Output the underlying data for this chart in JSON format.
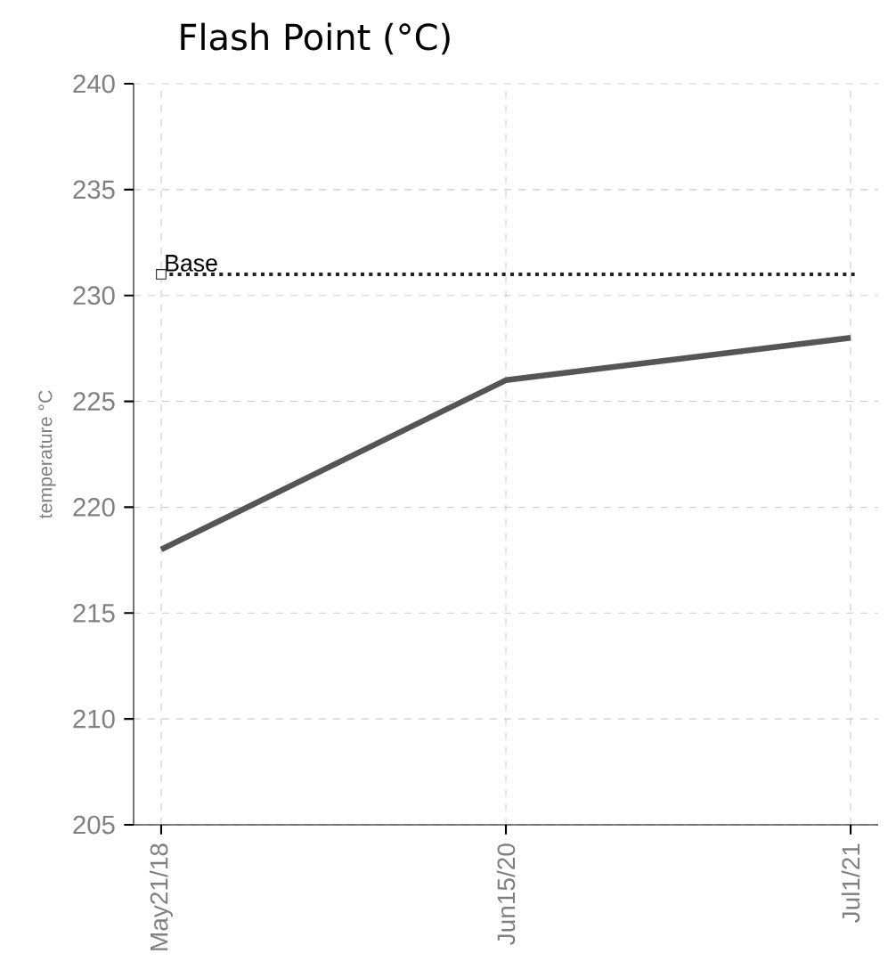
{
  "chart_data": {
    "type": "line",
    "title": "Flash Point (°C)",
    "ylabel": "temperature °C",
    "categories": [
      "May21/18",
      "Jun15/20",
      "Jul1/21"
    ],
    "series": [
      {
        "color": "#555555",
        "values": [
          218,
          226,
          228
        ]
      }
    ],
    "ylim": [
      205,
      240
    ],
    "yticks": [
      205,
      210,
      215,
      220,
      225,
      230,
      235,
      240
    ],
    "grid": true,
    "marker": "none",
    "line_style": "solid",
    "ref_lines": [
      {
        "axis": "y",
        "value": 231,
        "label": "Base",
        "color": "#222222",
        "line_style": "dotted"
      }
    ]
  }
}
